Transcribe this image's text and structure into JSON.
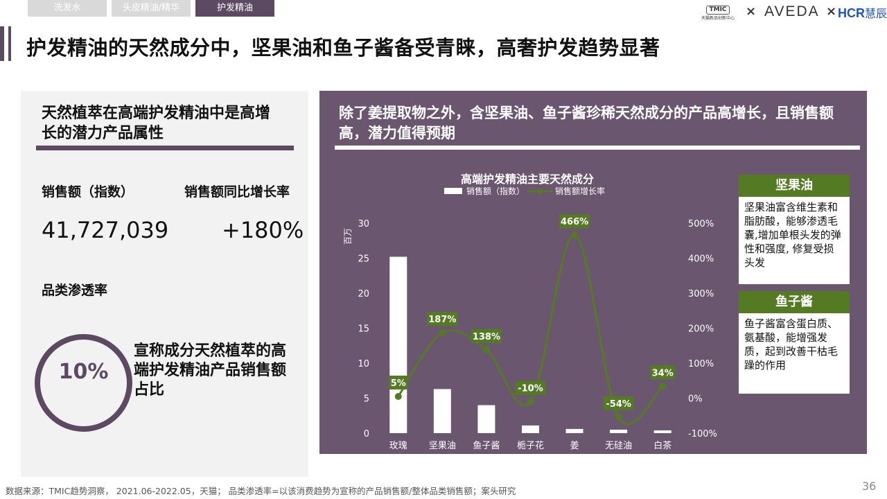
{
  "tabs": [
    {
      "label": "洗发水",
      "active": false
    },
    {
      "label": "头皮精油/精华",
      "active": false
    },
    {
      "label": "护发精油",
      "active": true
    }
  ],
  "logos": {
    "tmic_mark": "TMIC",
    "tmic_sub": "天猫新品创新中心",
    "aveda": "AVEDA",
    "hcr": "HCR",
    "hcr_cn": "慧辰",
    "x": "×"
  },
  "title": "护发精油的天然成分中，坚果油和鱼子酱备受青睐，高奢护发趋势显著",
  "left_panel": {
    "heading": "天然植萃在高端护发精油中是高增长的潜力产品属性",
    "sales_label": "销售额（指数）",
    "sales_value": "41,727,039",
    "growth_label": "销售额同比增长率",
    "growth_value": "+180%",
    "penetration_label": "品类渗透率",
    "penetration_value": "10%",
    "penetration_desc": "宣称成分天然植萃的高端护发精油产品销售额占比"
  },
  "right_panel": {
    "heading": "除了姜提取物之外，含坚果油、鱼子酱珍稀天然成分的产品高增长，且销售额高，潜力值得预期"
  },
  "chart_data": {
    "type": "bar",
    "title": "高端护发精油主要天然成分",
    "categories": [
      "玫瑰",
      "坚果油",
      "鱼子酱",
      "栀子花",
      "姜",
      "无硅油",
      "白茶"
    ],
    "series": [
      {
        "name": "销售额（指数）",
        "type": "bar",
        "axis": "left",
        "values": [
          25.2,
          6.3,
          4.0,
          1.1,
          0.6,
          0.5,
          0.4
        ]
      },
      {
        "name": "销售额增长率",
        "type": "line",
        "axis": "right",
        "values": [
          5,
          187,
          138,
          -10,
          466,
          -54,
          34
        ],
        "labels": [
          "5%",
          "187%",
          "138%",
          "-10%",
          "466%",
          "-54%",
          "34%"
        ]
      }
    ],
    "y_left": {
      "label": "百万",
      "min": 0,
      "max": 30,
      "ticks": [
        0,
        5,
        10,
        15,
        20,
        25,
        30
      ]
    },
    "y_right": {
      "min": -100,
      "max": 500,
      "ticks": [
        "-100%",
        "0%",
        "100%",
        "200%",
        "300%",
        "400%",
        "500%"
      ]
    },
    "colors": {
      "bar": "#ffffff",
      "line": "#547a23",
      "label_bg": "#547a23"
    },
    "legend_position": "top"
  },
  "notes": [
    {
      "title": "坚果油",
      "body": "坚果油富含维生素和脂肪酸，能够渗透毛囊,增加单根头发的弹性和强度, 修复受损头发"
    },
    {
      "title": "鱼子酱",
      "body": "鱼子酱富含蛋白质、氨基酸，能增强发质，起到改善干枯毛躁的作用"
    }
  ],
  "footer": "数据来源：TMIC趋势洞察， 2021.06-2022.05，天猫； 品类渗透率=以该消费趋势为宣称的产品销售额/整体品类销售额；案头研究",
  "page_number": "36"
}
